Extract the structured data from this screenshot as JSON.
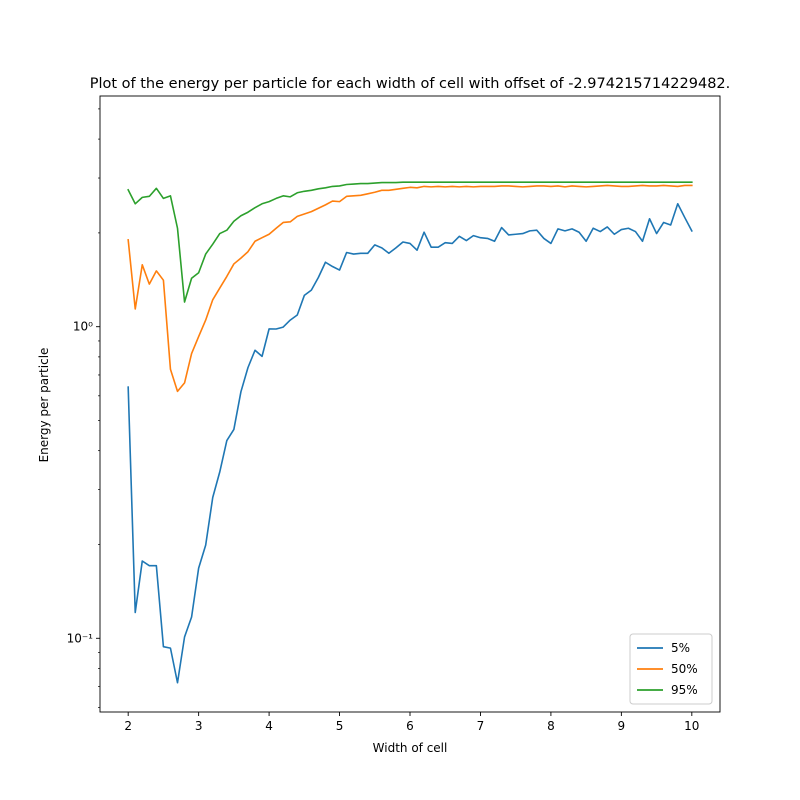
{
  "chart_data": {
    "type": "line",
    "title": "Plot of the energy per particle for each width of cell with offset of -2.974215714229482.",
    "xlabel": "Width of cell",
    "ylabel": "Energy per particle",
    "yscale": "log",
    "xlim": [
      1.6,
      10.4
    ],
    "ylim": [
      0.058,
      5.5
    ],
    "grid": false,
    "legend_position": "bottom-right",
    "x_ticks": [
      2,
      3,
      4,
      5,
      6,
      7,
      8,
      9,
      10
    ],
    "x_tick_labels": [
      "2",
      "3",
      "4",
      "5",
      "6",
      "7",
      "8",
      "9",
      "10"
    ],
    "y_ticks": [
      0.1,
      1
    ],
    "y_tick_labels": [
      "10⁻¹",
      "10⁰"
    ],
    "x": [
      2.0,
      2.1,
      2.2,
      2.3,
      2.4,
      2.5,
      2.6,
      2.7,
      2.8,
      2.9,
      3.0,
      3.1,
      3.2,
      3.3,
      3.4,
      3.5,
      3.6,
      3.7,
      3.8,
      3.9,
      4.0,
      4.1,
      4.2,
      4.3,
      4.4,
      4.5,
      4.6,
      4.7,
      4.8,
      4.9,
      5.0,
      5.1,
      5.2,
      5.3,
      5.4,
      5.5,
      5.6,
      5.7,
      5.8,
      5.9,
      6.0,
      6.1,
      6.2,
      6.3,
      6.4,
      6.5,
      6.6,
      6.7,
      6.8,
      6.9,
      7.0,
      7.1,
      7.2,
      7.3,
      7.4,
      7.5,
      7.6,
      7.7,
      7.8,
      7.9,
      8.0,
      8.1,
      8.2,
      8.3,
      8.4,
      8.5,
      8.6,
      8.7,
      8.8,
      8.9,
      9.0,
      9.1,
      9.2,
      9.3,
      9.4,
      9.5,
      9.6,
      9.7,
      9.8,
      9.9,
      10.0
    ],
    "series": [
      {
        "name": "5%",
        "color": "#1f77b4",
        "values": [
          0.64,
          0.121,
          0.177,
          0.171,
          0.171,
          0.094,
          0.093,
          0.072,
          0.101,
          0.117,
          0.168,
          0.199,
          0.283,
          0.342,
          0.431,
          0.468,
          0.618,
          0.739,
          0.84,
          0.803,
          0.984,
          0.983,
          0.997,
          1.05,
          1.09,
          1.26,
          1.31,
          1.44,
          1.61,
          1.56,
          1.52,
          1.73,
          1.71,
          1.72,
          1.72,
          1.83,
          1.79,
          1.72,
          1.79,
          1.87,
          1.85,
          1.76,
          2.01,
          1.8,
          1.8,
          1.86,
          1.85,
          1.95,
          1.89,
          1.96,
          1.93,
          1.92,
          1.88,
          2.08,
          1.97,
          1.98,
          1.99,
          2.03,
          2.04,
          1.92,
          1.85,
          2.06,
          2.03,
          2.06,
          2.01,
          1.88,
          2.07,
          2.02,
          2.09,
          1.98,
          2.05,
          2.07,
          2.02,
          1.88,
          2.22,
          1.99,
          2.16,
          2.12,
          2.48,
          2.24,
          2.03
        ]
      },
      {
        "name": "50%",
        "color": "#ff7f0e",
        "values": [
          1.9,
          1.14,
          1.58,
          1.37,
          1.51,
          1.41,
          0.73,
          0.62,
          0.66,
          0.82,
          0.93,
          1.05,
          1.22,
          1.33,
          1.45,
          1.59,
          1.66,
          1.74,
          1.88,
          1.93,
          1.98,
          2.07,
          2.16,
          2.17,
          2.26,
          2.3,
          2.34,
          2.4,
          2.46,
          2.53,
          2.52,
          2.62,
          2.63,
          2.64,
          2.67,
          2.7,
          2.74,
          2.74,
          2.76,
          2.78,
          2.8,
          2.79,
          2.82,
          2.81,
          2.82,
          2.81,
          2.82,
          2.81,
          2.82,
          2.81,
          2.82,
          2.82,
          2.82,
          2.83,
          2.83,
          2.82,
          2.81,
          2.82,
          2.83,
          2.83,
          2.82,
          2.83,
          2.81,
          2.83,
          2.82,
          2.81,
          2.82,
          2.83,
          2.84,
          2.83,
          2.82,
          2.82,
          2.83,
          2.84,
          2.83,
          2.83,
          2.84,
          2.83,
          2.82,
          2.84,
          2.84
        ]
      },
      {
        "name": "95%",
        "color": "#2ca02c",
        "values": [
          2.75,
          2.48,
          2.6,
          2.62,
          2.78,
          2.58,
          2.63,
          2.07,
          1.2,
          1.43,
          1.49,
          1.71,
          1.84,
          1.99,
          2.04,
          2.18,
          2.27,
          2.33,
          2.41,
          2.48,
          2.52,
          2.58,
          2.63,
          2.61,
          2.69,
          2.72,
          2.74,
          2.77,
          2.79,
          2.82,
          2.83,
          2.86,
          2.87,
          2.88,
          2.88,
          2.89,
          2.9,
          2.9,
          2.9,
          2.91,
          2.91,
          2.91,
          2.91,
          2.91,
          2.91,
          2.91,
          2.91,
          2.91,
          2.91,
          2.91,
          2.91,
          2.91,
          2.91,
          2.91,
          2.91,
          2.91,
          2.91,
          2.91,
          2.91,
          2.91,
          2.91,
          2.91,
          2.91,
          2.91,
          2.91,
          2.91,
          2.91,
          2.91,
          2.91,
          2.91,
          2.91,
          2.91,
          2.91,
          2.91,
          2.91,
          2.91,
          2.91,
          2.91,
          2.91,
          2.91,
          2.91
        ]
      }
    ]
  }
}
